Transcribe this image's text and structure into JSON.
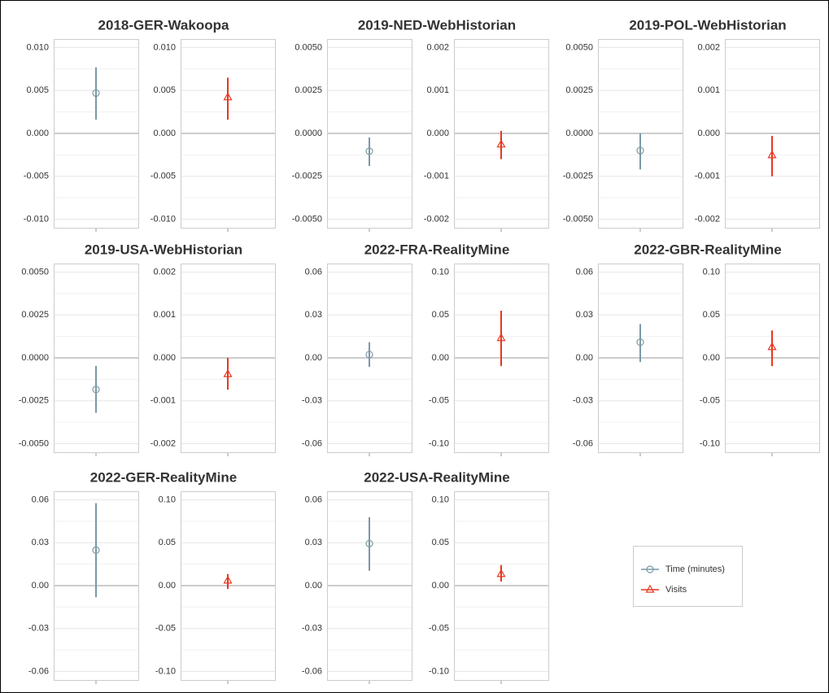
{
  "chart_data": [
    {
      "type": "errorbar",
      "title": "2018-GER-Wakoopa",
      "series": [
        {
          "name": "Time (minutes)",
          "color": "#7b99a5",
          "marker": "circle",
          "values": [
            0.0047
          ],
          "lower": [
            0.0016
          ],
          "upper": [
            0.0077
          ],
          "ylim": [
            -0.011,
            0.011
          ],
          "yticks": [
            {
              "value": 0.01,
              "label": "0.010"
            },
            0.005,
            {
              "value": 0,
              "label": "0.000"
            },
            -0.005,
            {
              "value": -0.01,
              "label": "-0.010"
            }
          ]
        },
        {
          "name": "Visits",
          "color": "#e8371f",
          "marker": "triangle",
          "values": [
            0.0042
          ],
          "lower": [
            0.0016
          ],
          "upper": [
            0.0065
          ],
          "ylim": [
            -0.011,
            0.011
          ],
          "yticks": [
            {
              "value": 0.01,
              "label": "0.010"
            },
            0.005,
            {
              "value": 0,
              "label": "0.000"
            },
            -0.005,
            {
              "value": -0.01,
              "label": "-0.010"
            }
          ]
        }
      ]
    },
    {
      "type": "errorbar",
      "title": "2019-NED-WebHistorian",
      "series": [
        {
          "name": "Time (minutes)",
          "color": "#7b99a5",
          "marker": "circle",
          "values": [
            -0.00104
          ],
          "lower": [
            -0.0019
          ],
          "upper": [
            -0.00024
          ],
          "ylim": [
            -0.0055,
            0.0055
          ],
          "yticks": [
            {
              "value": 0.005,
              "label": "0.0050"
            },
            0.0025,
            {
              "value": 0,
              "label": "0.0000"
            },
            -0.0025,
            {
              "value": -0.005,
              "label": "-0.0050"
            }
          ]
        },
        {
          "name": "Visits",
          "color": "#e8371f",
          "marker": "triangle",
          "values": [
            -0.00026
          ],
          "lower": [
            -0.0006
          ],
          "upper": [
            6e-05
          ],
          "ylim": [
            -0.0022,
            0.0022
          ],
          "yticks": [
            0.002,
            0.001,
            {
              "value": 0,
              "label": "0.000"
            },
            -0.001,
            -0.002
          ]
        }
      ]
    },
    {
      "type": "errorbar",
      "title": "2019-POL-WebHistorian",
      "series": [
        {
          "name": "Time (minutes)",
          "color": "#7b99a5",
          "marker": "circle",
          "values": [
            -0.001
          ],
          "lower": [
            -0.0021
          ],
          "upper": [
            0
          ],
          "ylim": [
            -0.0055,
            0.0055
          ],
          "yticks": [
            {
              "value": 0.005,
              "label": "0.0050"
            },
            0.0025,
            {
              "value": 0,
              "label": "0.0000"
            },
            -0.0025,
            {
              "value": -0.005,
              "label": "-0.0050"
            }
          ]
        },
        {
          "name": "Visits",
          "color": "#e8371f",
          "marker": "triangle",
          "values": [
            -0.00051
          ],
          "lower": [
            -0.001
          ],
          "upper": [
            -6e-05
          ],
          "ylim": [
            -0.0022,
            0.0022
          ],
          "yticks": [
            0.002,
            0.001,
            {
              "value": 0,
              "label": "0.000"
            },
            -0.001,
            -0.002
          ]
        }
      ]
    },
    {
      "type": "errorbar",
      "title": "2019-USA-WebHistorian",
      "series": [
        {
          "name": "Time (minutes)",
          "color": "#7b99a5",
          "marker": "circle",
          "values": [
            -0.00184
          ],
          "lower": [
            -0.0032
          ],
          "upper": [
            -0.00047
          ],
          "ylim": [
            -0.0055,
            0.0055
          ],
          "yticks": [
            {
              "value": 0.005,
              "label": "0.0050"
            },
            0.0025,
            {
              "value": 0,
              "label": "0.0000"
            },
            -0.0025,
            {
              "value": -0.005,
              "label": "-0.0050"
            }
          ]
        },
        {
          "name": "Visits",
          "color": "#e8371f",
          "marker": "triangle",
          "values": [
            -0.00038
          ],
          "lower": [
            -0.00074
          ],
          "upper": [
            0
          ],
          "ylim": [
            -0.0022,
            0.0022
          ],
          "yticks": [
            0.002,
            0.001,
            {
              "value": 0,
              "label": "0.000"
            },
            -0.001,
            -0.002
          ]
        }
      ]
    },
    {
      "type": "errorbar",
      "title": "2022-FRA-RealityMine",
      "series": [
        {
          "name": "Time (minutes)",
          "color": "#7b99a5",
          "marker": "circle",
          "values": [
            0.0023
          ],
          "lower": [
            -0.0063
          ],
          "upper": [
            0.011
          ],
          "ylim": [
            -0.066,
            0.066
          ],
          "yticks": [
            0.06,
            0.03,
            {
              "value": 0,
              "label": "0.00"
            },
            -0.03,
            -0.06
          ]
        },
        {
          "name": "Visits",
          "color": "#e8371f",
          "marker": "triangle",
          "values": [
            0.023
          ],
          "lower": [
            -0.0096
          ],
          "upper": [
            0.055
          ],
          "ylim": [
            -0.11,
            0.11
          ],
          "yticks": [
            {
              "value": 0.1,
              "label": "0.10"
            },
            0.05,
            {
              "value": 0,
              "label": "0.00"
            },
            -0.05,
            {
              "value": -0.1,
              "label": "-0.10"
            }
          ]
        }
      ]
    },
    {
      "type": "errorbar",
      "title": "2022-GBR-RealityMine",
      "series": [
        {
          "name": "Time (minutes)",
          "color": "#7b99a5",
          "marker": "circle",
          "values": [
            0.011
          ],
          "lower": [
            -0.0029
          ],
          "upper": [
            0.0237
          ],
          "ylim": [
            -0.066,
            0.066
          ],
          "yticks": [
            0.06,
            0.03,
            {
              "value": 0,
              "label": "0.00"
            },
            -0.03,
            -0.06
          ]
        },
        {
          "name": "Visits",
          "color": "#e8371f",
          "marker": "triangle",
          "values": [
            0.0125
          ],
          "lower": [
            -0.0096
          ],
          "upper": [
            0.032
          ],
          "ylim": [
            -0.11,
            0.11
          ],
          "yticks": [
            {
              "value": 0.1,
              "label": "0.10"
            },
            0.05,
            {
              "value": 0,
              "label": "0.00"
            },
            -0.05,
            {
              "value": -0.1,
              "label": "-0.10"
            }
          ]
        }
      ]
    },
    {
      "type": "errorbar",
      "title": "2022-GER-RealityMine",
      "series": [
        {
          "name": "Time (minutes)",
          "color": "#7b99a5",
          "marker": "circle",
          "values": [
            0.0248
          ],
          "lower": [
            -0.0081
          ],
          "upper": [
            0.0577
          ],
          "ylim": [
            -0.066,
            0.066
          ],
          "yticks": [
            0.06,
            0.03,
            {
              "value": 0,
              "label": "0.00"
            },
            -0.03,
            -0.06
          ]
        },
        {
          "name": "Visits",
          "color": "#e8371f",
          "marker": "triangle",
          "values": [
            0.0058
          ],
          "lower": [
            -0.0038
          ],
          "upper": [
            0.0135
          ],
          "ylim": [
            -0.11,
            0.11
          ],
          "yticks": [
            {
              "value": 0.1,
              "label": "0.10"
            },
            0.05,
            {
              "value": 0,
              "label": "0.00"
            },
            -0.05,
            {
              "value": -0.1,
              "label": "-0.10"
            }
          ]
        }
      ]
    },
    {
      "type": "errorbar",
      "title": "2022-USA-RealityMine",
      "series": [
        {
          "name": "Time (minutes)",
          "color": "#7b99a5",
          "marker": "circle",
          "values": [
            0.0294
          ],
          "lower": [
            0.0104
          ],
          "upper": [
            0.0479
          ],
          "ylim": [
            -0.066,
            0.066
          ],
          "yticks": [
            0.06,
            0.03,
            {
              "value": 0,
              "label": "0.00"
            },
            -0.03,
            -0.06
          ]
        },
        {
          "name": "Visits",
          "color": "#e8371f",
          "marker": "triangle",
          "values": [
            0.0135
          ],
          "lower": [
            0.0048
          ],
          "upper": [
            0.024
          ],
          "ylim": [
            -0.11,
            0.11
          ],
          "yticks": [
            {
              "value": 0.1,
              "label": "0.10"
            },
            0.05,
            {
              "value": 0,
              "label": "0.00"
            },
            -0.05,
            {
              "value": -0.1,
              "label": "-0.10"
            }
          ]
        }
      ]
    }
  ]
}
